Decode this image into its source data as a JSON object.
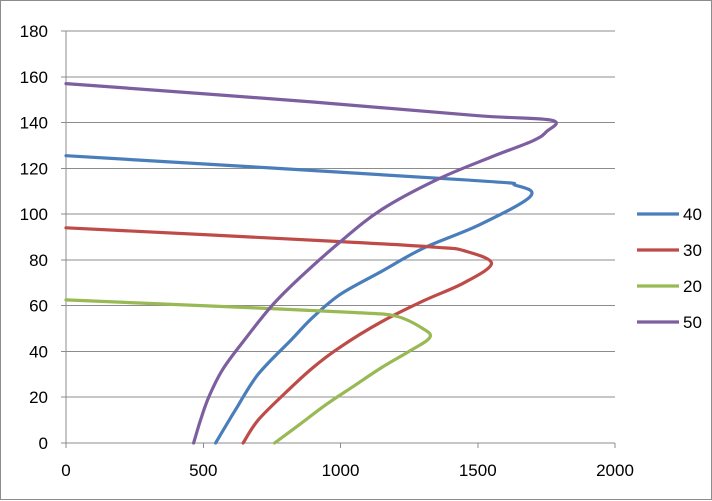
{
  "chart_data": {
    "type": "line",
    "title": "",
    "xlabel": "",
    "ylabel": "",
    "xlim": [
      0,
      2000
    ],
    "ylim": [
      0,
      180
    ],
    "x_ticks": [
      "0",
      "500",
      "1000",
      "1500",
      "2000"
    ],
    "y_ticks": [
      "0",
      "20",
      "40",
      "60",
      "80",
      "100",
      "120",
      "140",
      "160",
      "180"
    ],
    "x_tick_values": [
      0,
      500,
      1000,
      1500,
      2000
    ],
    "y_tick_values": [
      0,
      20,
      40,
      60,
      80,
      100,
      120,
      140,
      160,
      180
    ],
    "grid": "horizontal",
    "legend_position": "right",
    "series": [
      {
        "name": "40",
        "color": "#4a7ebb",
        "points": [
          [
            0,
            125.5
          ],
          [
            1450,
            115
          ],
          [
            1640,
            112.5
          ],
          [
            1690,
            107.5
          ],
          [
            1500,
            95
          ],
          [
            1300,
            85
          ],
          [
            1150,
            75
          ],
          [
            1000,
            65
          ],
          [
            900,
            55
          ],
          [
            820,
            45
          ],
          [
            700,
            30
          ],
          [
            620,
            15
          ],
          [
            545,
            0
          ]
        ]
      },
      {
        "name": "30",
        "color": "#be4b48",
        "points": [
          [
            0,
            94
          ],
          [
            1000,
            88
          ],
          [
            1350,
            85.5
          ],
          [
            1450,
            84
          ],
          [
            1550,
            78.5
          ],
          [
            1450,
            70
          ],
          [
            1300,
            62
          ],
          [
            1150,
            53
          ],
          [
            1000,
            42
          ],
          [
            900,
            33
          ],
          [
            800,
            22
          ],
          [
            700,
            10
          ],
          [
            645,
            0
          ]
        ]
      },
      {
        "name": "20",
        "color": "#98b954",
        "points": [
          [
            0,
            62.5
          ],
          [
            700,
            59
          ],
          [
            1050,
            57
          ],
          [
            1200,
            55.5
          ],
          [
            1300,
            50
          ],
          [
            1325,
            46
          ],
          [
            1250,
            40
          ],
          [
            1150,
            33
          ],
          [
            1050,
            25
          ],
          [
            950,
            17
          ],
          [
            850,
            8
          ],
          [
            760,
            0
          ]
        ]
      },
      {
        "name": "50",
        "color": "#7d5fa0",
        "points": [
          [
            0,
            157
          ],
          [
            900,
            149
          ],
          [
            1500,
            143
          ],
          [
            1770,
            141
          ],
          [
            1750,
            136
          ],
          [
            1700,
            132
          ],
          [
            1550,
            125
          ],
          [
            1350,
            115
          ],
          [
            1150,
            102
          ],
          [
            1000,
            88
          ],
          [
            850,
            72
          ],
          [
            750,
            60
          ],
          [
            650,
            45
          ],
          [
            570,
            32
          ],
          [
            520,
            20
          ],
          [
            490,
            10
          ],
          [
            465,
            0
          ]
        ]
      }
    ]
  }
}
